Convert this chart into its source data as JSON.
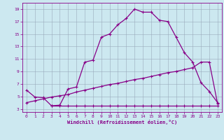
{
  "xlabel": "Windchill (Refroidissement éolien,°C)",
  "bg_color": "#cce8f0",
  "line_color": "#880088",
  "grid_color": "#99aabb",
  "xlim": [
    -0.5,
    23.5
  ],
  "ylim": [
    2.5,
    20.0
  ],
  "xticks": [
    0,
    1,
    2,
    3,
    4,
    5,
    6,
    7,
    8,
    9,
    10,
    11,
    12,
    13,
    14,
    15,
    16,
    17,
    18,
    19,
    20,
    21,
    22,
    23
  ],
  "yticks": [
    3,
    5,
    7,
    9,
    11,
    13,
    15,
    17,
    19
  ],
  "curve1_x": [
    0,
    1,
    2,
    3,
    4,
    5,
    6,
    7,
    8,
    9,
    10,
    11,
    12,
    13,
    14,
    15,
    16,
    17,
    18,
    19,
    20,
    21,
    22,
    23
  ],
  "curve1_y": [
    6.0,
    4.9,
    4.8,
    3.5,
    3.6,
    6.2,
    6.5,
    10.5,
    10.8,
    14.5,
    15.0,
    16.5,
    17.5,
    19.0,
    18.5,
    18.5,
    17.2,
    17.0,
    14.5,
    12.0,
    10.5,
    7.2,
    5.8,
    4.0
  ],
  "curve2_x": [
    0,
    1,
    2,
    3,
    4,
    5,
    6,
    7,
    8,
    9,
    10,
    11,
    12,
    13,
    14,
    15,
    16,
    17,
    18,
    19,
    20,
    21,
    22,
    23
  ],
  "curve2_y": [
    4.0,
    4.3,
    4.6,
    4.9,
    5.1,
    5.3,
    5.7,
    6.0,
    6.3,
    6.6,
    6.9,
    7.1,
    7.4,
    7.7,
    7.9,
    8.2,
    8.5,
    8.8,
    9.0,
    9.3,
    9.6,
    10.5,
    10.5,
    3.8
  ],
  "curve3_x": [
    3,
    4,
    5,
    6,
    7,
    8,
    9,
    10,
    11,
    12,
    13,
    14,
    15,
    16,
    17,
    18,
    19,
    20,
    21,
    22,
    23
  ],
  "curve3_y": [
    3.5,
    3.5,
    3.5,
    3.5,
    3.5,
    3.5,
    3.5,
    3.5,
    3.5,
    3.5,
    3.5,
    3.5,
    3.5,
    3.5,
    3.5,
    3.5,
    3.5,
    3.5,
    3.5,
    3.5,
    3.5
  ]
}
